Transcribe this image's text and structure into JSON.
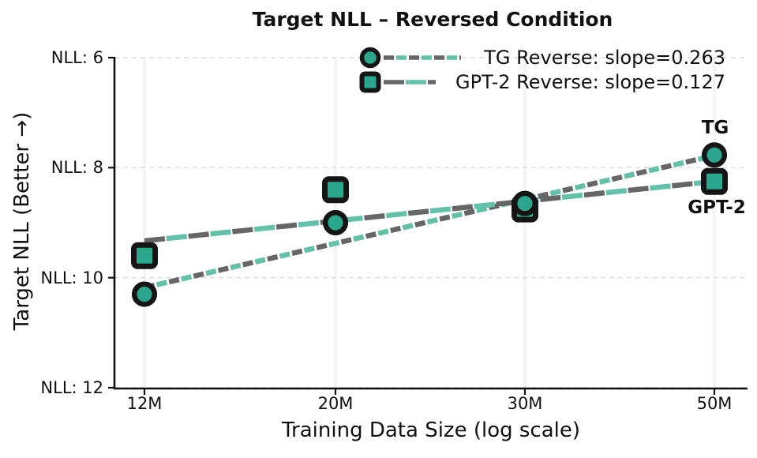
{
  "title": "Target NLL – Reversed Condition",
  "colors": {
    "teal": "#2aa78d",
    "teal_light_dash": "#63c1aa",
    "gray_dash": "#666666",
    "marker_edge": "#151515",
    "spine": "#111111",
    "grid_horizontal": "#dcdcdc",
    "grid_vertical": "#f2f2f2",
    "text": "#111111"
  },
  "chart_data": {
    "type": "line",
    "title": "Target NLL – Reversed Condition",
    "xlabel": "Training Data Size (log scale)",
    "ylabel": "Target NLL (Better →)",
    "x_categories": [
      "12M",
      "20M",
      "30M",
      "50M"
    ],
    "y_tick_labels": [
      "NLL: 6",
      "NLL: 8",
      "NLL: 10",
      "NLL: 12"
    ],
    "y_tick_values": [
      6,
      8,
      10,
      12
    ],
    "ylim": [
      6,
      12
    ],
    "y_axis_inverted": true,
    "grid": true,
    "legend_position": "upper right, frameless",
    "series": [
      {
        "name": "TG Reverse",
        "legend_label": "TG Reverse: slope=0.263",
        "slope": 0.263,
        "marker": "circle",
        "dash": "short",
        "values": [
          10.3,
          9.0,
          8.65,
          7.77
        ],
        "trend_endpoints": [
          10.18,
          7.78
        ],
        "annotation": "TG"
      },
      {
        "name": "GPT-2 Reverse",
        "legend_label": "GPT-2 Reverse: slope=0.127",
        "slope": 0.127,
        "marker": "square",
        "dash": "long",
        "values": [
          9.6,
          8.4,
          8.75,
          8.25
        ],
        "trend_endpoints": [
          9.33,
          8.25
        ],
        "annotation": "GPT-2"
      }
    ]
  }
}
